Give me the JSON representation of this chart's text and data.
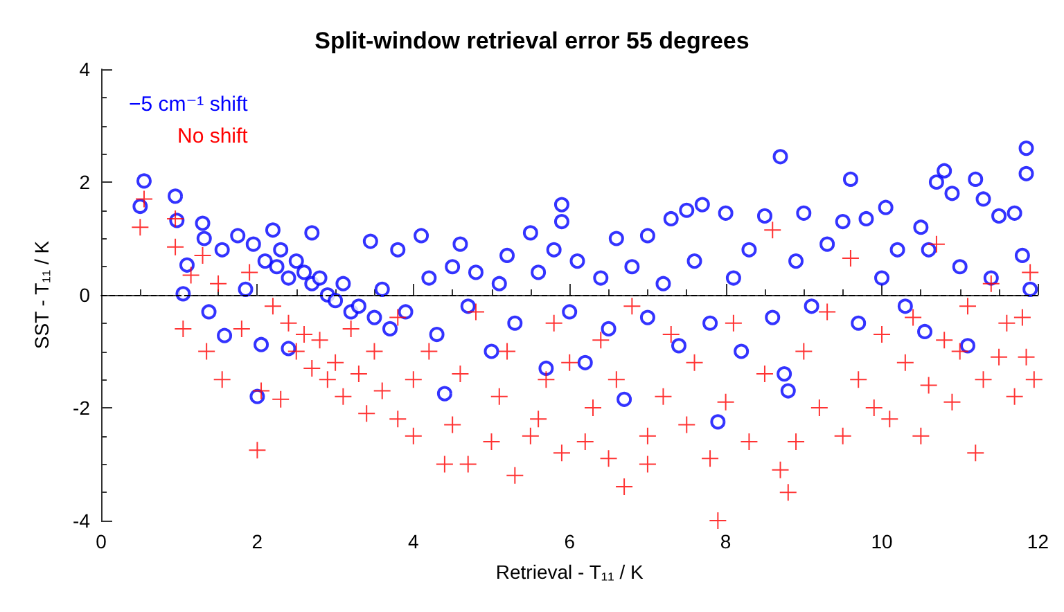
{
  "chart_data": {
    "type": "scatter",
    "title": "Split-window retrieval error 55 degrees",
    "xlabel": "Retrieval - T₁₁ / K",
    "ylabel": "SST - T₁₁ / K",
    "xlim": [
      0,
      12
    ],
    "xticks": [
      0,
      2,
      4,
      6,
      8,
      10,
      12
    ],
    "ylim": [
      -4,
      4
    ],
    "yticks": [
      -4,
      -2,
      0,
      2,
      4
    ],
    "grid": false,
    "legend": "top left",
    "ref_lines": [
      {
        "axis": "y",
        "value": 0,
        "line_style": "dashed",
        "color": "#000000"
      }
    ],
    "series": [
      {
        "name": "−5 cm⁻¹ shift",
        "color": "#0000ff",
        "marker": "circle",
        "x": [
          0.55,
          0.5,
          0.95,
          0.97,
          1.05,
          1.1,
          1.3,
          1.32,
          1.38,
          1.55,
          1.58,
          1.75,
          1.85,
          1.95,
          2.0,
          2.05,
          2.1,
          2.2,
          2.25,
          2.3,
          2.4,
          2.4,
          2.5,
          2.6,
          2.7,
          2.7,
          2.8,
          2.9,
          3.0,
          3.1,
          3.2,
          3.3,
          3.45,
          3.5,
          3.6,
          3.7,
          3.8,
          3.9,
          4.1,
          4.2,
          4.3,
          4.4,
          4.5,
          4.6,
          4.7,
          4.8,
          5.0,
          5.1,
          5.2,
          5.3,
          5.5,
          5.6,
          5.7,
          5.8,
          5.9,
          5.9,
          6.0,
          6.1,
          6.2,
          6.4,
          6.5,
          6.6,
          6.7,
          6.8,
          7.0,
          7.0,
          7.2,
          7.3,
          7.4,
          7.5,
          7.6,
          7.7,
          7.8,
          7.9,
          8.0,
          8.1,
          8.2,
          8.3,
          8.5,
          8.6,
          8.7,
          8.75,
          8.8,
          8.9,
          9.0,
          9.1,
          9.3,
          9.5,
          9.6,
          9.7,
          9.8,
          10.0,
          10.05,
          10.2,
          10.3,
          10.5,
          10.55,
          10.6,
          10.7,
          10.8,
          10.9,
          11.0,
          11.1,
          11.2,
          11.3,
          11.4,
          11.5,
          11.7,
          11.8,
          11.85,
          11.85,
          11.9
        ],
        "values": [
          2.02,
          1.57,
          1.75,
          1.32,
          0.02,
          0.53,
          1.27,
          1.0,
          -0.3,
          0.8,
          -0.72,
          1.05,
          0.1,
          0.9,
          -1.8,
          -0.88,
          0.6,
          1.15,
          0.5,
          0.8,
          0.3,
          -0.95,
          0.6,
          0.4,
          0.2,
          1.1,
          0.3,
          0.0,
          -0.1,
          0.2,
          -0.3,
          -0.2,
          0.95,
          -0.4,
          0.1,
          -0.6,
          0.8,
          -0.3,
          1.05,
          0.3,
          -0.7,
          -1.75,
          0.5,
          0.9,
          -0.2,
          0.4,
          -1.0,
          0.2,
          0.7,
          -0.5,
          1.1,
          0.4,
          -1.3,
          0.8,
          1.6,
          1.3,
          -0.3,
          0.6,
          -1.2,
          0.3,
          -0.6,
          1.0,
          -1.85,
          0.5,
          -0.4,
          1.05,
          0.2,
          1.35,
          -0.9,
          1.5,
          0.6,
          1.6,
          -0.5,
          -2.25,
          1.45,
          0.3,
          -1.0,
          0.8,
          1.4,
          -0.4,
          2.45,
          -1.4,
          -1.7,
          0.6,
          1.45,
          -0.2,
          0.9,
          1.3,
          2.05,
          -0.5,
          1.35,
          0.3,
          1.55,
          0.8,
          -0.2,
          1.2,
          -0.65,
          0.8,
          2.0,
          2.2,
          1.8,
          0.5,
          -0.9,
          2.05,
          1.7,
          0.3,
          1.4,
          1.45,
          0.7,
          2.6,
          2.15,
          0.1
        ]
      },
      {
        "name": "No shift",
        "color": "#ff0000",
        "marker": "cross",
        "x": [
          0.55,
          0.5,
          0.95,
          0.95,
          1.05,
          1.15,
          1.3,
          1.35,
          1.5,
          1.55,
          1.8,
          1.9,
          2.0,
          2.05,
          2.2,
          2.3,
          2.4,
          2.5,
          2.6,
          2.7,
          2.8,
          2.9,
          3.0,
          3.1,
          3.2,
          3.3,
          3.4,
          3.5,
          3.6,
          3.8,
          3.8,
          4.0,
          4.0,
          4.2,
          4.4,
          4.5,
          4.6,
          4.7,
          4.8,
          5.0,
          5.1,
          5.2,
          5.3,
          5.5,
          5.6,
          5.7,
          5.8,
          5.9,
          6.0,
          6.2,
          6.3,
          6.4,
          6.5,
          6.6,
          6.7,
          6.8,
          7.0,
          7.0,
          7.2,
          7.3,
          7.5,
          7.6,
          7.8,
          7.9,
          8.0,
          8.1,
          8.3,
          8.5,
          8.6,
          8.7,
          8.8,
          8.9,
          9.0,
          9.2,
          9.3,
          9.5,
          9.6,
          9.7,
          9.9,
          10.0,
          10.1,
          10.3,
          10.4,
          10.5,
          10.6,
          10.7,
          10.8,
          10.9,
          11.0,
          11.1,
          11.2,
          11.3,
          11.4,
          11.5,
          11.6,
          11.7,
          11.8,
          11.85,
          11.9,
          11.95
        ],
        "values": [
          1.7,
          1.2,
          1.35,
          0.85,
          -0.6,
          0.35,
          0.7,
          -1.0,
          0.2,
          -1.5,
          -0.6,
          0.4,
          -2.75,
          -1.7,
          -0.2,
          -1.85,
          -0.5,
          -1.0,
          -0.7,
          -1.3,
          -0.8,
          -1.5,
          -1.2,
          -1.8,
          -0.6,
          -1.4,
          -2.1,
          -1.0,
          -1.7,
          -2.2,
          -0.4,
          -1.5,
          -2.5,
          -1.0,
          -3.0,
          -2.3,
          -1.4,
          -3.0,
          -0.3,
          -2.6,
          -1.8,
          -1.0,
          -3.2,
          -2.5,
          -2.2,
          -1.5,
          -0.5,
          -2.8,
          -1.2,
          -2.6,
          -2.0,
          -0.8,
          -2.9,
          -1.5,
          -3.4,
          -0.2,
          -2.5,
          -3.0,
          -1.8,
          -0.7,
          -2.3,
          -1.2,
          -2.9,
          -4.0,
          -1.9,
          -0.5,
          -2.6,
          -1.4,
          1.15,
          -3.1,
          -3.5,
          -2.6,
          -1.0,
          -2.0,
          -0.3,
          -2.5,
          0.65,
          -1.5,
          -2.0,
          -0.7,
          -2.2,
          -1.2,
          -0.4,
          -2.5,
          -1.6,
          0.9,
          -0.8,
          -1.9,
          -1.0,
          -0.2,
          -2.8,
          -1.5,
          0.2,
          -1.1,
          -0.5,
          -1.8,
          -0.4,
          -1.1,
          0.4,
          -1.5
        ]
      }
    ]
  }
}
